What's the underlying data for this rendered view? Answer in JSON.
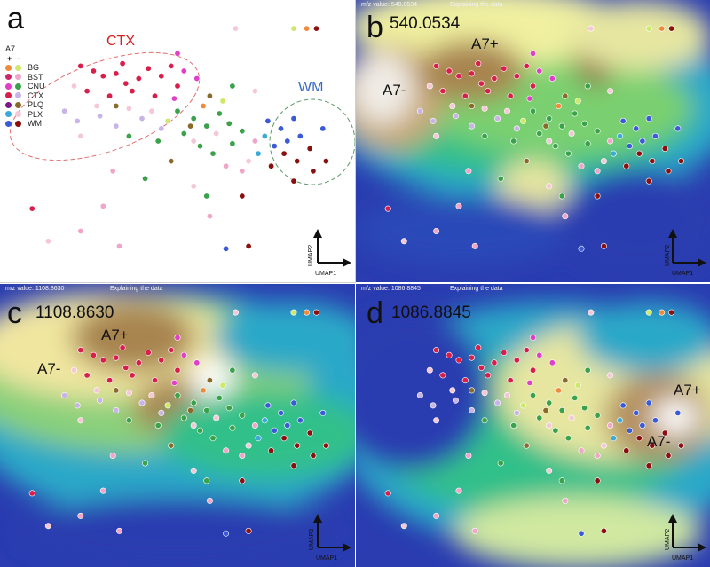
{
  "panels": {
    "a": {
      "letter": "a"
    },
    "b": {
      "letter": "b",
      "mz_label": "540.0534",
      "topbar_mz": "m/z value: 540.0534",
      "topbar_caption": "Explaining the data",
      "anno_plus": "A7+",
      "anno_minus": "A7-"
    },
    "c": {
      "letter": "c",
      "mz_label": "1108.8630",
      "topbar_mz": "m/z value: 1108.8630",
      "topbar_caption": "Explaining the data",
      "anno_plus": "A7+",
      "anno_minus": "A7-"
    },
    "d": {
      "letter": "d",
      "mz_label": "1086.8845",
      "topbar_mz": "m/z value: 1086.8845",
      "topbar_caption": "Explaining the data",
      "anno_plus": "A7+",
      "anno_minus": "A7-"
    }
  },
  "legend": {
    "title": "A7",
    "plus": "+",
    "minus": "-",
    "items": [
      {
        "label": "BG",
        "plus_color": "#ee8a3c",
        "minus_color": "#cde86a"
      },
      {
        "label": "BST",
        "plus_color": "#c8286a",
        "minus_color": "#f0a6c8"
      },
      {
        "label": "CNU",
        "plus_color": "#e040c8",
        "minus_color": "#3aa24a"
      },
      {
        "label": "CTX",
        "plus_color": "#d81e4a",
        "minus_color": "#c8b4e6"
      },
      {
        "label": "PLQ",
        "plus_color": "#7a1a8a",
        "minus_color": "#8a6a2a"
      },
      {
        "label": "PLX",
        "plus_color": "#3aaad8",
        "minus_color": "#f5c8d8"
      },
      {
        "label": "WM",
        "plus_color": "#3a5ad8",
        "minus_color": "#8a1010"
      }
    ]
  },
  "clusters": {
    "ctx": "CTX",
    "wm": "WM"
  },
  "axes": {
    "x": "UMAP1",
    "y": "UMAP2"
  },
  "chart_data": {
    "type": "scatter",
    "xlabel": "UMAP1",
    "ylabel": "UMAP2",
    "grid": false,
    "legend_position": "top-left",
    "points": [
      {
        "x": 0.2,
        "y": 0.2,
        "cls": "CTX+"
      },
      {
        "x": 0.24,
        "y": 0.22,
        "cls": "CTX+"
      },
      {
        "x": 0.27,
        "y": 0.24,
        "cls": "CTX+"
      },
      {
        "x": 0.31,
        "y": 0.23,
        "cls": "CTX+"
      },
      {
        "x": 0.34,
        "y": 0.27,
        "cls": "CTX+"
      },
      {
        "x": 0.38,
        "y": 0.25,
        "cls": "CTX+"
      },
      {
        "x": 0.41,
        "y": 0.21,
        "cls": "CTX+"
      },
      {
        "x": 0.45,
        "y": 0.24,
        "cls": "CTX+"
      },
      {
        "x": 0.48,
        "y": 0.2,
        "cls": "CTX+"
      },
      {
        "x": 0.22,
        "y": 0.3,
        "cls": "CTX+"
      },
      {
        "x": 0.29,
        "y": 0.32,
        "cls": "CTX+"
      },
      {
        "x": 0.36,
        "y": 0.3,
        "cls": "CTX+"
      },
      {
        "x": 0.43,
        "y": 0.32,
        "cls": "CTX+"
      },
      {
        "x": 0.5,
        "y": 0.28,
        "cls": "CTX+"
      },
      {
        "x": 0.33,
        "y": 0.19,
        "cls": "CTX+"
      },
      {
        "x": 0.52,
        "y": 0.22,
        "cls": "CNU+"
      },
      {
        "x": 0.56,
        "y": 0.25,
        "cls": "CNU+"
      },
      {
        "x": 0.49,
        "y": 0.33,
        "cls": "CNU+"
      },
      {
        "x": 0.15,
        "y": 0.38,
        "cls": "CTX-"
      },
      {
        "x": 0.19,
        "y": 0.42,
        "cls": "CTX-"
      },
      {
        "x": 0.26,
        "y": 0.4,
        "cls": "CTX-"
      },
      {
        "x": 0.31,
        "y": 0.44,
        "cls": "CTX-"
      },
      {
        "x": 0.39,
        "y": 0.41,
        "cls": "CTX-"
      },
      {
        "x": 0.45,
        "y": 0.45,
        "cls": "CTX-"
      },
      {
        "x": 0.25,
        "y": 0.36,
        "cls": "PLX-"
      },
      {
        "x": 0.35,
        "y": 0.37,
        "cls": "PLX-"
      },
      {
        "x": 0.42,
        "y": 0.38,
        "cls": "PLX-"
      },
      {
        "x": 0.2,
        "y": 0.48,
        "cls": "PLX-"
      },
      {
        "x": 0.55,
        "y": 0.5,
        "cls": "PLX-"
      },
      {
        "x": 0.62,
        "y": 0.47,
        "cls": "PLX-"
      },
      {
        "x": 0.5,
        "y": 0.38,
        "cls": "CNU-"
      },
      {
        "x": 0.55,
        "y": 0.41,
        "cls": "CNU-"
      },
      {
        "x": 0.59,
        "y": 0.44,
        "cls": "CNU-"
      },
      {
        "x": 0.63,
        "y": 0.39,
        "cls": "CNU-"
      },
      {
        "x": 0.66,
        "y": 0.43,
        "cls": "CNU-"
      },
      {
        "x": 0.7,
        "y": 0.46,
        "cls": "CNU-"
      },
      {
        "x": 0.57,
        "y": 0.52,
        "cls": "CNU-"
      },
      {
        "x": 0.61,
        "y": 0.55,
        "cls": "CNU-"
      },
      {
        "x": 0.67,
        "y": 0.51,
        "cls": "CNU-"
      },
      {
        "x": 0.52,
        "y": 0.47,
        "cls": "CNU-"
      },
      {
        "x": 0.44,
        "y": 0.5,
        "cls": "CNU-"
      },
      {
        "x": 0.35,
        "y": 0.48,
        "cls": "CNU-"
      },
      {
        "x": 0.58,
        "y": 0.36,
        "cls": "BG+"
      },
      {
        "x": 0.64,
        "y": 0.34,
        "cls": "BG-"
      },
      {
        "x": 0.47,
        "y": 0.42,
        "cls": "BG-"
      },
      {
        "x": 0.6,
        "y": 0.32,
        "cls": "PLQ-"
      },
      {
        "x": 0.54,
        "y": 0.44,
        "cls": "PLQ-"
      },
      {
        "x": 0.31,
        "y": 0.36,
        "cls": "PLQ-"
      },
      {
        "x": 0.78,
        "y": 0.42,
        "cls": "WM+"
      },
      {
        "x": 0.82,
        "y": 0.45,
        "cls": "WM+"
      },
      {
        "x": 0.86,
        "y": 0.41,
        "cls": "WM+"
      },
      {
        "x": 0.84,
        "y": 0.5,
        "cls": "WM+"
      },
      {
        "x": 0.8,
        "y": 0.52,
        "cls": "WM+"
      },
      {
        "x": 0.88,
        "y": 0.48,
        "cls": "WM+"
      },
      {
        "x": 0.83,
        "y": 0.55,
        "cls": "WM-"
      },
      {
        "x": 0.87,
        "y": 0.58,
        "cls": "WM-"
      },
      {
        "x": 0.91,
        "y": 0.53,
        "cls": "WM-"
      },
      {
        "x": 0.79,
        "y": 0.6,
        "cls": "WM-"
      },
      {
        "x": 0.92,
        "y": 0.62,
        "cls": "WM-"
      },
      {
        "x": 0.86,
        "y": 0.66,
        "cls": "WM-"
      },
      {
        "x": 0.75,
        "y": 0.55,
        "cls": "PLX+"
      },
      {
        "x": 0.77,
        "y": 0.48,
        "cls": "PLX+"
      },
      {
        "x": 0.72,
        "y": 0.58,
        "cls": "PLX-"
      },
      {
        "x": 0.74,
        "y": 0.5,
        "cls": "BST-"
      },
      {
        "x": 0.7,
        "y": 0.62,
        "cls": "BST-"
      },
      {
        "x": 0.65,
        "y": 0.6,
        "cls": "BST-"
      },
      {
        "x": 0.3,
        "y": 0.62,
        "cls": "BST-"
      },
      {
        "x": 0.27,
        "y": 0.76,
        "cls": "BST-"
      },
      {
        "x": 0.32,
        "y": 0.92,
        "cls": "BST-"
      },
      {
        "x": 0.2,
        "y": 0.86,
        "cls": "BST-"
      },
      {
        "x": 0.55,
        "y": 0.68,
        "cls": "PLX-"
      },
      {
        "x": 0.59,
        "y": 0.72,
        "cls": "CNU-"
      },
      {
        "x": 0.6,
        "y": 0.8,
        "cls": "BST-"
      },
      {
        "x": 0.65,
        "y": 0.93,
        "cls": "WM+"
      },
      {
        "x": 0.72,
        "y": 0.92,
        "cls": "WM-"
      },
      {
        "x": 0.05,
        "y": 0.77,
        "cls": "CTX+"
      },
      {
        "x": 0.1,
        "y": 0.9,
        "cls": "PLX-"
      },
      {
        "x": 0.68,
        "y": 0.05,
        "cls": "PLX-"
      },
      {
        "x": 0.86,
        "y": 0.05,
        "cls": "BG-"
      },
      {
        "x": 0.9,
        "y": 0.05,
        "cls": "BG+"
      },
      {
        "x": 0.93,
        "y": 0.05,
        "cls": "WM-"
      },
      {
        "x": 0.4,
        "y": 0.65,
        "cls": "CNU-"
      },
      {
        "x": 0.48,
        "y": 0.58,
        "cls": "PLQ-"
      },
      {
        "x": 0.7,
        "y": 0.72,
        "cls": "WM-"
      },
      {
        "x": 0.5,
        "y": 0.15,
        "cls": "CNU+"
      },
      {
        "x": 0.18,
        "y": 0.28,
        "cls": "PLX-"
      },
      {
        "x": 0.67,
        "y": 0.28,
        "cls": "CNU-"
      },
      {
        "x": 0.74,
        "y": 0.3,
        "cls": "PLX-"
      },
      {
        "x": 0.95,
        "y": 0.45,
        "cls": "WM+"
      },
      {
        "x": 0.96,
        "y": 0.58,
        "cls": "WM-"
      }
    ]
  }
}
